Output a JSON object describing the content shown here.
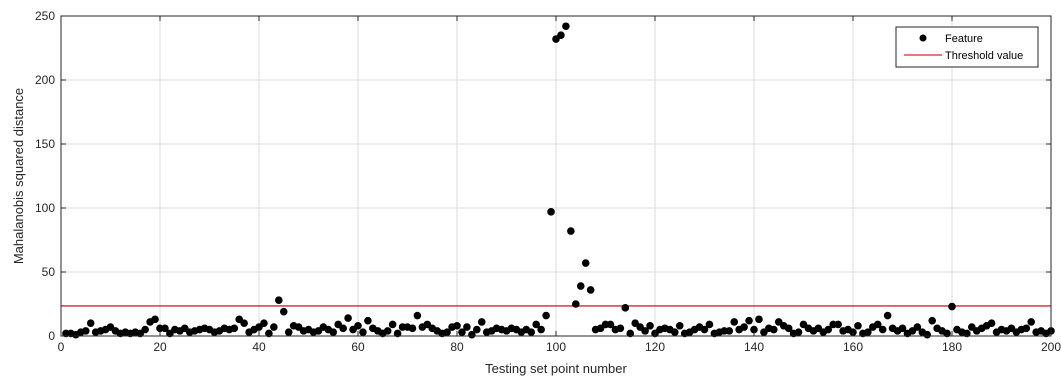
{
  "chart_data": {
    "type": "scatter",
    "title": "",
    "xlabel": "Testing set point number",
    "ylabel": "Mahalanobis squared distance",
    "xlim": [
      0,
      200
    ],
    "ylim": [
      0,
      250
    ],
    "xticks": [
      0,
      20,
      40,
      60,
      80,
      100,
      120,
      140,
      160,
      180,
      200
    ],
    "yticks": [
      0,
      50,
      100,
      150,
      200,
      250
    ],
    "grid": true,
    "legend_position": "top-right",
    "series": [
      {
        "name": "Feature",
        "marker": "filled-circle",
        "color": "#000000",
        "x": [
          1,
          2,
          3,
          4,
          5,
          6,
          7,
          8,
          9,
          10,
          11,
          12,
          13,
          14,
          15,
          16,
          17,
          18,
          19,
          20,
          21,
          22,
          23,
          24,
          25,
          26,
          27,
          28,
          29,
          30,
          31,
          32,
          33,
          34,
          35,
          36,
          37,
          38,
          39,
          40,
          41,
          42,
          43,
          44,
          45,
          46,
          47,
          48,
          49,
          50,
          51,
          52,
          53,
          54,
          55,
          56,
          57,
          58,
          59,
          60,
          61,
          62,
          63,
          64,
          65,
          66,
          67,
          68,
          69,
          70,
          71,
          72,
          73,
          74,
          75,
          76,
          77,
          78,
          79,
          80,
          81,
          82,
          83,
          84,
          85,
          86,
          87,
          88,
          89,
          90,
          91,
          92,
          93,
          94,
          95,
          96,
          97,
          98,
          99,
          100,
          101,
          102,
          103,
          104,
          105,
          106,
          107,
          108,
          109,
          110,
          111,
          112,
          113,
          114,
          115,
          116,
          117,
          118,
          119,
          120,
          121,
          122,
          123,
          124,
          125,
          126,
          127,
          128,
          129,
          130,
          131,
          132,
          133,
          134,
          135,
          136,
          137,
          138,
          139,
          140,
          141,
          142,
          143,
          144,
          145,
          146,
          147,
          148,
          149,
          150,
          151,
          152,
          153,
          154,
          155,
          156,
          157,
          158,
          159,
          160,
          161,
          162,
          163,
          164,
          165,
          166,
          167,
          168,
          169,
          170,
          171,
          172,
          173,
          174,
          175,
          176,
          177,
          178,
          179,
          180,
          181,
          182,
          183,
          184,
          185,
          186,
          187,
          188,
          189,
          190,
          191,
          192,
          193,
          194,
          195,
          196,
          197,
          198,
          199,
          200
        ],
        "y": [
          2,
          2,
          1,
          3,
          4,
          10,
          3,
          4,
          5,
          7,
          4,
          2,
          3,
          2,
          3,
          2,
          5,
          11,
          13,
          6,
          6,
          2,
          5,
          4,
          6,
          3,
          4,
          5,
          6,
          5,
          3,
          4,
          6,
          5,
          6,
          13,
          10,
          3,
          5,
          7,
          10,
          2,
          7,
          28,
          19,
          3,
          8,
          7,
          4,
          5,
          3,
          4,
          7,
          5,
          3,
          9,
          6,
          14,
          5,
          8,
          3,
          12,
          6,
          4,
          2,
          4,
          9,
          2,
          7,
          7,
          6,
          16,
          7,
          9,
          6,
          4,
          2,
          3,
          7,
          8,
          3,
          7,
          1,
          5,
          11,
          3,
          4,
          6,
          5,
          4,
          6,
          5,
          3,
          5,
          3,
          9,
          5,
          16,
          97,
          232,
          235,
          242,
          82,
          25,
          39,
          57,
          36,
          5,
          6,
          9,
          9,
          5,
          6,
          22,
          2,
          10,
          7,
          4,
          8,
          2,
          5,
          6,
          5,
          3,
          8,
          2,
          3,
          5,
          7,
          5,
          9,
          2,
          3,
          4,
          4,
          11,
          5,
          7,
          12,
          5,
          13,
          3,
          6,
          5,
          11,
          8,
          6,
          2,
          3,
          9,
          6,
          4,
          6,
          3,
          5,
          9,
          9,
          4,
          5,
          3,
          8,
          2,
          3,
          7,
          9,
          5,
          16,
          6,
          4,
          6,
          2,
          4,
          7,
          3,
          1,
          12,
          6,
          4,
          2,
          23,
          5,
          3,
          2,
          7,
          4,
          6,
          8,
          10,
          3,
          5,
          4,
          6,
          3,
          5,
          6,
          11,
          3,
          4,
          2,
          4
        ]
      },
      {
        "name": "Threshold value",
        "marker": "line",
        "color": "#d62728",
        "y_constant": 23.5
      }
    ]
  }
}
